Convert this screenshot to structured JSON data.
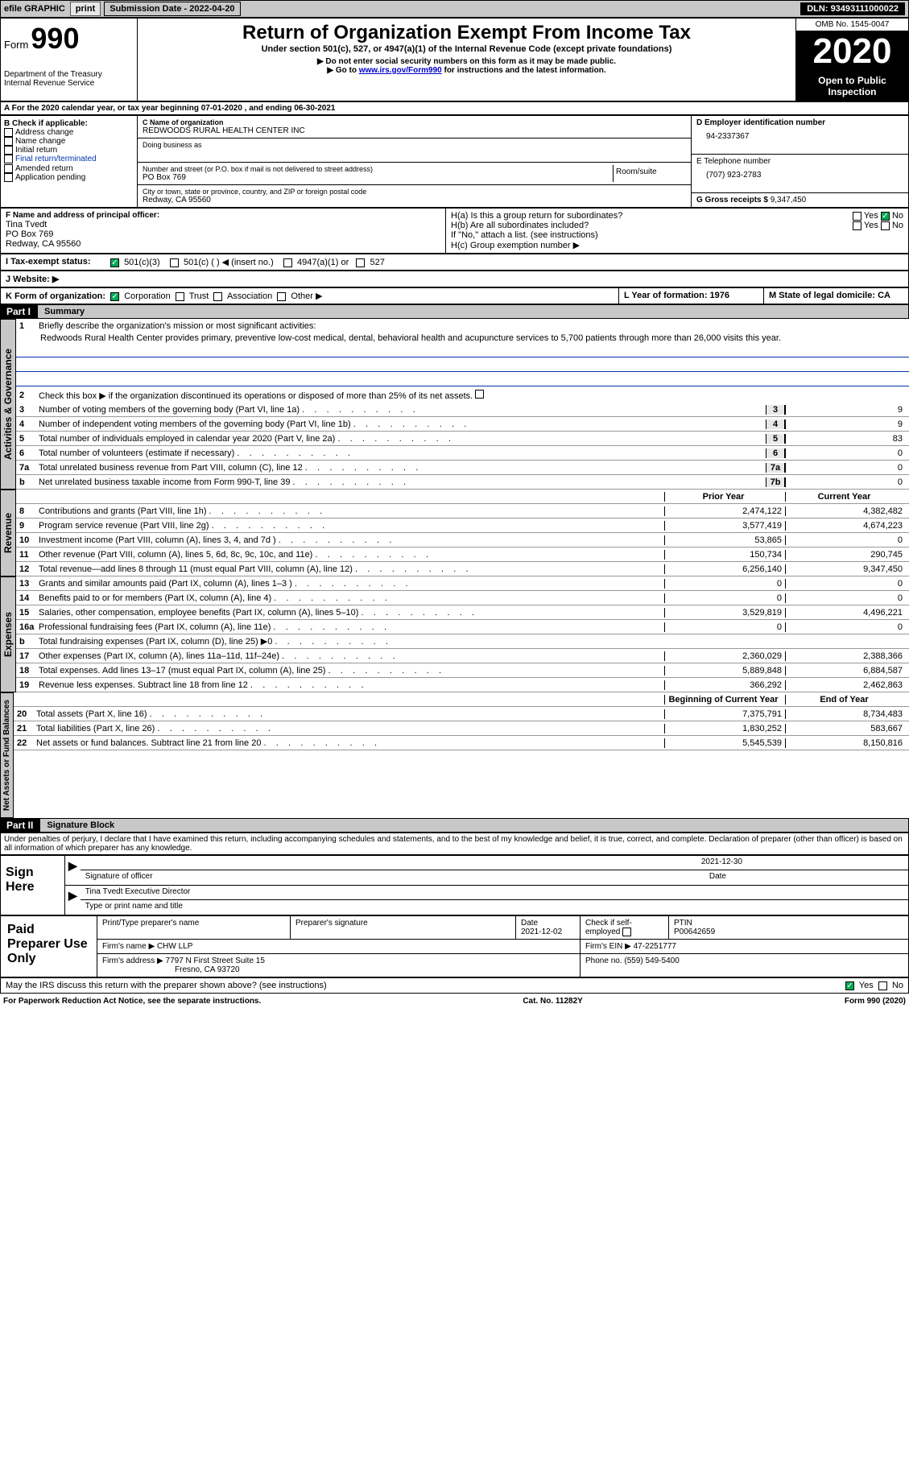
{
  "topbar": {
    "efile": "efile GRAPHIC",
    "print": "print",
    "sub_label": "Submission Date - ",
    "sub_date": "2022-04-20",
    "dln_label": "DLN: ",
    "dln": "93493111000022"
  },
  "header": {
    "form_word": "Form",
    "form_num": "990",
    "title": "Return of Organization Exempt From Income Tax",
    "subtitle": "Under section 501(c), 527, or 4947(a)(1) of the Internal Revenue Code (except private foundations)",
    "note1": "▶ Do not enter social security numbers on this form as it may be made public.",
    "note2_pre": "▶ Go to ",
    "note2_link": "www.irs.gov/Form990",
    "note2_post": " for instructions and the latest information.",
    "dept": "Department of the Treasury",
    "irs": "Internal Revenue Service",
    "omb": "OMB No. 1545-0047",
    "year": "2020",
    "open": "Open to Public Inspection"
  },
  "rowA": "A For the 2020 calendar year, or tax year beginning 07-01-2020    , and ending 06-30-2021",
  "sectionB": {
    "b_label": "B Check if applicable:",
    "b_opts": [
      "Address change",
      "Name change",
      "Initial return",
      "Final return/terminated",
      "Amended return",
      "Application pending"
    ],
    "c_label": "C Name of organization",
    "c_name": "REDWOODS RURAL HEALTH CENTER INC",
    "dba": "Doing business as",
    "addr_label": "Number and street (or P.O. box if mail is not delivered to street address)",
    "room": "Room/suite",
    "addr": "PO Box 769",
    "city_label": "City or town, state or province, country, and ZIP or foreign postal code",
    "city": "Redway, CA  95560",
    "d_label": "D Employer identification number",
    "d_ein": "94-2337367",
    "e_label": "E Telephone number",
    "e_phone": "(707) 923-2783",
    "g_label": "G Gross receipts $ ",
    "g_val": "9,347,450",
    "f_label": "F  Name and address of principal officer:",
    "f_name": "Tina Tvedt",
    "f_addr1": "PO Box 769",
    "f_addr2": "Redway, CA  95560",
    "ha": "H(a)  Is this a group return for subordinates?",
    "hb": "H(b)  Are all subordinates included?",
    "h_note": "If \"No,\" attach a list. (see instructions)",
    "hc": "H(c)  Group exemption number ▶",
    "yes": "Yes",
    "no": "No"
  },
  "rowI": {
    "label": "I     Tax-exempt status:",
    "o1": "501(c)(3)",
    "o2": "501(c) (   ) ◀ (insert no.)",
    "o3": "4947(a)(1) or",
    "o4": "527"
  },
  "rowJ": "J    Website: ▶",
  "rowK": {
    "label": "K Form of organization:",
    "o1": "Corporation",
    "o2": "Trust",
    "o3": "Association",
    "o4": "Other ▶",
    "L": "L Year of formation: 1976",
    "M": "M State of legal domicile: CA"
  },
  "part1": {
    "hdr": "Part I",
    "title": "Summary",
    "l1": "Briefly describe the organization's mission or most significant activities:",
    "l1_text": "Redwoods Rural Health Center provides primary, preventive low-cost medical, dental, behavioral health and acupuncture services to 5,700 patients through more than 26,000 visits this year.",
    "l2": "Check this box ▶         if the organization discontinued its operations or disposed of more than 25% of its net assets.",
    "vert1": "Activities & Governance",
    "vert2": "Revenue",
    "vert3": "Expenses",
    "vert4": "Net Assets or Fund Balances",
    "prior": "Prior Year",
    "current": "Current Year",
    "beg": "Beginning of Current Year",
    "end": "End of Year"
  },
  "lines_gov": [
    {
      "n": "3",
      "t": "Number of voting members of the governing body (Part VI, line 1a)",
      "b": "3",
      "v": "9"
    },
    {
      "n": "4",
      "t": "Number of independent voting members of the governing body (Part VI, line 1b)",
      "b": "4",
      "v": "9"
    },
    {
      "n": "5",
      "t": "Total number of individuals employed in calendar year 2020 (Part V, line 2a)",
      "b": "5",
      "v": "83"
    },
    {
      "n": "6",
      "t": "Total number of volunteers (estimate if necessary)",
      "b": "6",
      "v": "0"
    },
    {
      "n": "7a",
      "t": "Total unrelated business revenue from Part VIII, column (C), line 12",
      "b": "7a",
      "v": "0"
    },
    {
      "n": "b",
      "t": "Net unrelated business taxable income from Form 990-T, line 39",
      "b": "7b",
      "v": "0"
    }
  ],
  "lines_rev": [
    {
      "n": "8",
      "t": "Contributions and grants (Part VIII, line 1h)",
      "p": "2,474,122",
      "c": "4,382,482"
    },
    {
      "n": "9",
      "t": "Program service revenue (Part VIII, line 2g)",
      "p": "3,577,419",
      "c": "4,674,223"
    },
    {
      "n": "10",
      "t": "Investment income (Part VIII, column (A), lines 3, 4, and 7d )",
      "p": "53,865",
      "c": "0"
    },
    {
      "n": "11",
      "t": "Other revenue (Part VIII, column (A), lines 5, 6d, 8c, 9c, 10c, and 11e)",
      "p": "150,734",
      "c": "290,745"
    },
    {
      "n": "12",
      "t": "Total revenue—add lines 8 through 11 (must equal Part VIII, column (A), line 12)",
      "p": "6,256,140",
      "c": "9,347,450"
    }
  ],
  "lines_exp": [
    {
      "n": "13",
      "t": "Grants and similar amounts paid (Part IX, column (A), lines 1–3 )",
      "p": "0",
      "c": "0"
    },
    {
      "n": "14",
      "t": "Benefits paid to or for members (Part IX, column (A), line 4)",
      "p": "0",
      "c": "0"
    },
    {
      "n": "15",
      "t": "Salaries, other compensation, employee benefits (Part IX, column (A), lines 5–10)",
      "p": "3,529,819",
      "c": "4,496,221"
    },
    {
      "n": "16a",
      "t": "Professional fundraising fees (Part IX, column (A), line 11e)",
      "p": "0",
      "c": "0"
    },
    {
      "n": "b",
      "t": "Total fundraising expenses (Part IX, column (D), line 25) ▶0",
      "p": "",
      "c": ""
    },
    {
      "n": "17",
      "t": "Other expenses (Part IX, column (A), lines 11a–11d, 11f–24e)",
      "p": "2,360,029",
      "c": "2,388,366"
    },
    {
      "n": "18",
      "t": "Total expenses. Add lines 13–17 (must equal Part IX, column (A), line 25)",
      "p": "5,889,848",
      "c": "6,884,587"
    },
    {
      "n": "19",
      "t": "Revenue less expenses. Subtract line 18 from line 12",
      "p": "366,292",
      "c": "2,462,863"
    }
  ],
  "lines_net": [
    {
      "n": "20",
      "t": "Total assets (Part X, line 16)",
      "p": "7,375,791",
      "c": "8,734,483"
    },
    {
      "n": "21",
      "t": "Total liabilities (Part X, line 26)",
      "p": "1,830,252",
      "c": "583,667"
    },
    {
      "n": "22",
      "t": "Net assets or fund balances. Subtract line 21 from line 20",
      "p": "5,545,539",
      "c": "8,150,816"
    }
  ],
  "part2": {
    "hdr": "Part II",
    "title": "Signature Block"
  },
  "penalties": "Under penalties of perjury, I declare that I have examined this return, including accompanying schedules and statements, and to the best of my knowledge and belief, it is true, correct, and complete. Declaration of preparer (other than officer) is based on all information of which preparer has any knowledge.",
  "sign": {
    "here": "Sign Here",
    "sig_officer": "Signature of officer",
    "date": "Date",
    "sig_date": "2021-12-30",
    "name": "Tina Tvedt  Executive Director",
    "type_name": "Type or print name and title"
  },
  "prep": {
    "title": "Paid Preparer Use Only",
    "c1": "Print/Type preparer's name",
    "c2": "Preparer's signature",
    "c3": "Date",
    "c3v": "2021-12-02",
    "c4": "Check         if self-employed",
    "c5": "PTIN",
    "c5v": "P00642659",
    "firm_name_l": "Firm's name     ▶",
    "firm_name": "CHW LLP",
    "firm_ein_l": "Firm's EIN ▶",
    "firm_ein": "47-2251777",
    "firm_addr_l": "Firm's address ▶",
    "firm_addr1": "7797 N First Street Suite 15",
    "firm_addr2": "Fresno, CA  93720",
    "phone_l": "Phone no.",
    "phone": "(559) 549-5400"
  },
  "discuss": "May the IRS discuss this return with the preparer shown above? (see instructions)",
  "footer": {
    "l": "For Paperwork Reduction Act Notice, see the separate instructions.",
    "m": "Cat. No. 11282Y",
    "r": "Form 990 (2020)"
  }
}
